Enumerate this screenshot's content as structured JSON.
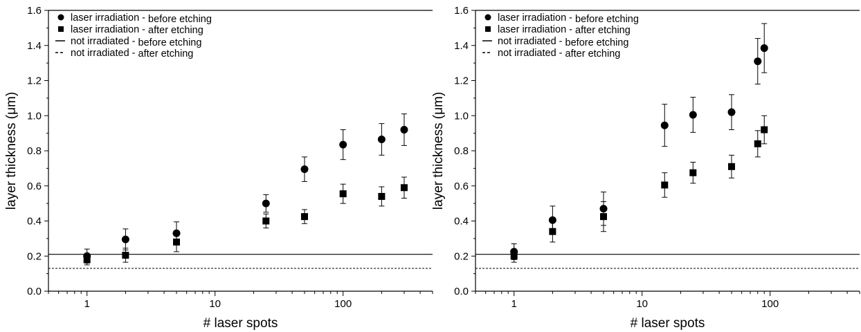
{
  "chart_data": [
    {
      "type": "scatter",
      "xscale": "log",
      "xlabel": "# laser spots",
      "ylabel": "layer thickness (μm)",
      "xlim": [
        0.5,
        500
      ],
      "ylim": [
        0,
        1.6
      ],
      "x_ticks": [
        "1",
        "10",
        "100"
      ],
      "y_ticks": [
        "0.0",
        "0.2",
        "0.4",
        "0.6",
        "0.8",
        "1.0",
        "1.2",
        "1.4",
        "1.6"
      ],
      "legend": {
        "position": "top-left",
        "entries": [
          {
            "marker": "circle",
            "label": "laser irradiation -",
            "suffix": "before etching"
          },
          {
            "marker": "square",
            "label": "laser irradiation -",
            "suffix": "after etching"
          },
          {
            "marker": "solid-line",
            "label": "not irradiated -",
            "suffix": "before etching"
          },
          {
            "marker": "dashed-line",
            "label": "not irradiated -",
            "suffix": "after etching"
          }
        ]
      },
      "series": [
        {
          "name": "laser irradiation - before etching",
          "marker": "circle",
          "points": [
            {
              "x": 1,
              "y": 0.2,
              "err": 0.04
            },
            {
              "x": 2,
              "y": 0.295,
              "err": 0.06
            },
            {
              "x": 5,
              "y": 0.33,
              "err": 0.065
            },
            {
              "x": 25,
              "y": 0.5,
              "err": 0.05
            },
            {
              "x": 50,
              "y": 0.695,
              "err": 0.07
            },
            {
              "x": 100,
              "y": 0.835,
              "err": 0.085
            },
            {
              "x": 200,
              "y": 0.865,
              "err": 0.09
            },
            {
              "x": 300,
              "y": 0.92,
              "err": 0.09
            }
          ]
        },
        {
          "name": "laser irradiation - after etching",
          "marker": "square",
          "points": [
            {
              "x": 1,
              "y": 0.18,
              "err": 0.03
            },
            {
              "x": 2,
              "y": 0.205,
              "err": 0.04
            },
            {
              "x": 5,
              "y": 0.28,
              "err": 0.055
            },
            {
              "x": 25,
              "y": 0.4,
              "err": 0.04
            },
            {
              "x": 50,
              "y": 0.425,
              "err": 0.04
            },
            {
              "x": 100,
              "y": 0.555,
              "err": 0.055
            },
            {
              "x": 200,
              "y": 0.54,
              "err": 0.055
            },
            {
              "x": 300,
              "y": 0.59,
              "err": 0.06
            }
          ]
        }
      ],
      "hlines": [
        {
          "name": "not irradiated - before etching",
          "y": 0.21,
          "style": "solid"
        },
        {
          "name": "not irradiated - after etching",
          "y": 0.13,
          "style": "dashed"
        }
      ]
    },
    {
      "type": "scatter",
      "xscale": "log",
      "xlabel": "# laser spots",
      "ylabel": "layer thickness (μm)",
      "xlim": [
        0.5,
        500
      ],
      "ylim": [
        0,
        1.6
      ],
      "x_ticks": [
        "1",
        "10",
        "100"
      ],
      "y_ticks": [
        "0.0",
        "0.2",
        "0.4",
        "0.6",
        "0.8",
        "1.0",
        "1.2",
        "1.4",
        "1.6"
      ],
      "legend": {
        "position": "top-left",
        "entries": [
          {
            "marker": "circle",
            "label": "laser irradiation -",
            "suffix": "before etching"
          },
          {
            "marker": "square",
            "label": "laser irradiation -",
            "suffix": "after etching"
          },
          {
            "marker": "solid-line",
            "label": "not irradiated -",
            "suffix": "before etching"
          },
          {
            "marker": "dashed-line",
            "label": "not irradiated -",
            "suffix": "after etching"
          }
        ]
      },
      "series": [
        {
          "name": "laser irradiation - before etching",
          "marker": "circle",
          "points": [
            {
              "x": 1,
              "y": 0.225,
              "err": 0.045
            },
            {
              "x": 2,
              "y": 0.405,
              "err": 0.08
            },
            {
              "x": 5,
              "y": 0.47,
              "err": 0.095
            },
            {
              "x": 15,
              "y": 0.945,
              "err": 0.12
            },
            {
              "x": 25,
              "y": 1.005,
              "err": 0.1
            },
            {
              "x": 50,
              "y": 1.02,
              "err": 0.1
            },
            {
              "x": 80,
              "y": 1.31,
              "err": 0.13
            },
            {
              "x": 90,
              "y": 1.385,
              "err": 0.14
            }
          ]
        },
        {
          "name": "laser irradiation - after etching",
          "marker": "square",
          "points": [
            {
              "x": 1,
              "y": 0.2,
              "err": 0.035
            },
            {
              "x": 2,
              "y": 0.34,
              "err": 0.06
            },
            {
              "x": 5,
              "y": 0.425,
              "err": 0.085
            },
            {
              "x": 15,
              "y": 0.605,
              "err": 0.07
            },
            {
              "x": 25,
              "y": 0.675,
              "err": 0.06
            },
            {
              "x": 50,
              "y": 0.71,
              "err": 0.065
            },
            {
              "x": 80,
              "y": 0.84,
              "err": 0.075
            },
            {
              "x": 90,
              "y": 0.92,
              "err": 0.08
            }
          ]
        }
      ],
      "hlines": [
        {
          "name": "not irradiated - before etching",
          "y": 0.21,
          "style": "solid"
        },
        {
          "name": "not irradiated - after etching",
          "y": 0.13,
          "style": "dashed"
        }
      ]
    }
  ]
}
